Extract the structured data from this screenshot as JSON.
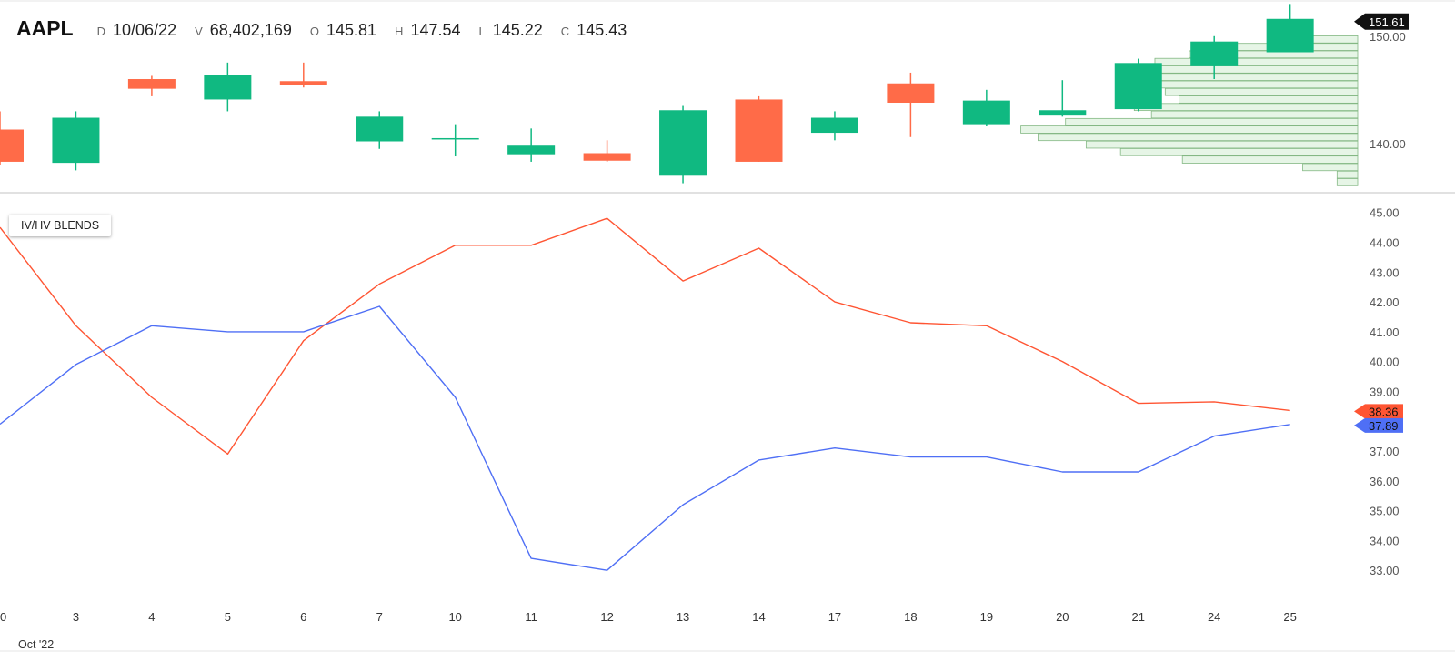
{
  "header": {
    "symbol": "AAPL",
    "date_label": "D",
    "date": "10/06/22",
    "volume_label": "V",
    "volume": "68,402,169",
    "open_label": "O",
    "open": "145.81",
    "high_label": "H",
    "high": "147.54",
    "low_label": "L",
    "low": "145.22",
    "close_label": "C",
    "close": "145.43"
  },
  "indicator_label": "IV/HV BLENDS",
  "month_label": "Oct '22",
  "colors": {
    "up": "#10b981",
    "down": "#ff6b48",
    "iv_line": "#ff5533",
    "hv_line": "#4f6ff5",
    "volume_profile_fill": "#e6f5e6",
    "volume_profile_stroke": "#84b884"
  },
  "chart_data": [
    {
      "type": "candlestick",
      "title": "AAPL",
      "x": [
        "0",
        "3",
        "4",
        "5",
        "6",
        "7",
        "10",
        "11",
        "12",
        "13",
        "14",
        "17",
        "18",
        "19",
        "20",
        "21",
        "24",
        "25"
      ],
      "open": [
        141.3,
        138.2,
        146.0,
        144.1,
        145.81,
        140.2,
        140.5,
        139.0,
        139.1,
        137.0,
        144.1,
        141.0,
        145.6,
        141.8,
        142.6,
        143.2,
        147.2,
        148.5
      ],
      "high": [
        143.0,
        143.0,
        146.3,
        147.54,
        147.54,
        143.0,
        141.8,
        141.4,
        140.3,
        143.5,
        144.4,
        143.0,
        146.6,
        145.0,
        145.9,
        147.9,
        150.0,
        153.0
      ],
      "low": [
        138.0,
        137.5,
        144.4,
        143.0,
        145.22,
        139.5,
        138.8,
        138.3,
        138.3,
        136.3,
        138.3,
        140.3,
        140.6,
        141.6,
        142.5,
        143.0,
        146.0,
        148.5
      ],
      "close": [
        138.3,
        142.4,
        145.1,
        146.4,
        145.43,
        142.5,
        140.5,
        139.8,
        138.4,
        143.1,
        138.3,
        142.4,
        143.8,
        144.0,
        143.1,
        147.5,
        149.5,
        151.61
      ],
      "y_ticks": [
        "140.00",
        "150.00"
      ],
      "ylim": [
        135.5,
        153.2
      ],
      "last_price_label": "151.61",
      "volume_profile": [
        {
          "price": 149.7,
          "volume": 0.18
        },
        {
          "price": 149.0,
          "volume": 0.37
        },
        {
          "price": 148.3,
          "volume": 0.49
        },
        {
          "price": 147.6,
          "volume": 0.59
        },
        {
          "price": 146.9,
          "volume": 0.61
        },
        {
          "price": 146.2,
          "volume": 0.61
        },
        {
          "price": 145.5,
          "volume": 0.59
        },
        {
          "price": 144.8,
          "volume": 0.56
        },
        {
          "price": 144.1,
          "volume": 0.52
        },
        {
          "price": 143.4,
          "volume": 0.65
        },
        {
          "price": 142.7,
          "volume": 0.6
        },
        {
          "price": 142.0,
          "volume": 0.85
        },
        {
          "price": 141.3,
          "volume": 0.98
        },
        {
          "price": 140.6,
          "volume": 0.93
        },
        {
          "price": 139.9,
          "volume": 0.79
        },
        {
          "price": 139.2,
          "volume": 0.69
        },
        {
          "price": 138.5,
          "volume": 0.51
        },
        {
          "price": 137.8,
          "volume": 0.16
        },
        {
          "price": 137.1,
          "volume": 0.06
        },
        {
          "price": 136.4,
          "volume": 0.06
        }
      ]
    },
    {
      "type": "line",
      "title": "IV/HV BLENDS",
      "x": [
        "0",
        "3",
        "4",
        "5",
        "6",
        "7",
        "10",
        "11",
        "12",
        "13",
        "14",
        "17",
        "18",
        "19",
        "20",
        "21",
        "24",
        "25"
      ],
      "series": [
        {
          "values": [
            44.5,
            41.2,
            38.8,
            36.9,
            40.7,
            42.6,
            43.9,
            43.9,
            44.8,
            42.7,
            43.8,
            42.0,
            41.3,
            41.2,
            40.0,
            38.6,
            38.65,
            38.36
          ],
          "color": "#ff5533",
          "last_label": "38.36"
        },
        {
          "values": [
            37.9,
            39.9,
            41.2,
            41.0,
            41.0,
            41.85,
            38.8,
            33.4,
            33.0,
            35.2,
            36.7,
            37.1,
            36.8,
            36.8,
            36.3,
            36.3,
            37.5,
            37.89
          ],
          "color": "#4f6ff5",
          "last_label": "37.89"
        }
      ],
      "y_ticks": [
        "33.00",
        "34.00",
        "35.00",
        "36.00",
        "37.00",
        "38.00",
        "39.00",
        "40.00",
        "41.00",
        "42.00",
        "43.00",
        "44.00",
        "45.00"
      ],
      "ylim": [
        32.0,
        45.6
      ],
      "grid": false
    }
  ]
}
